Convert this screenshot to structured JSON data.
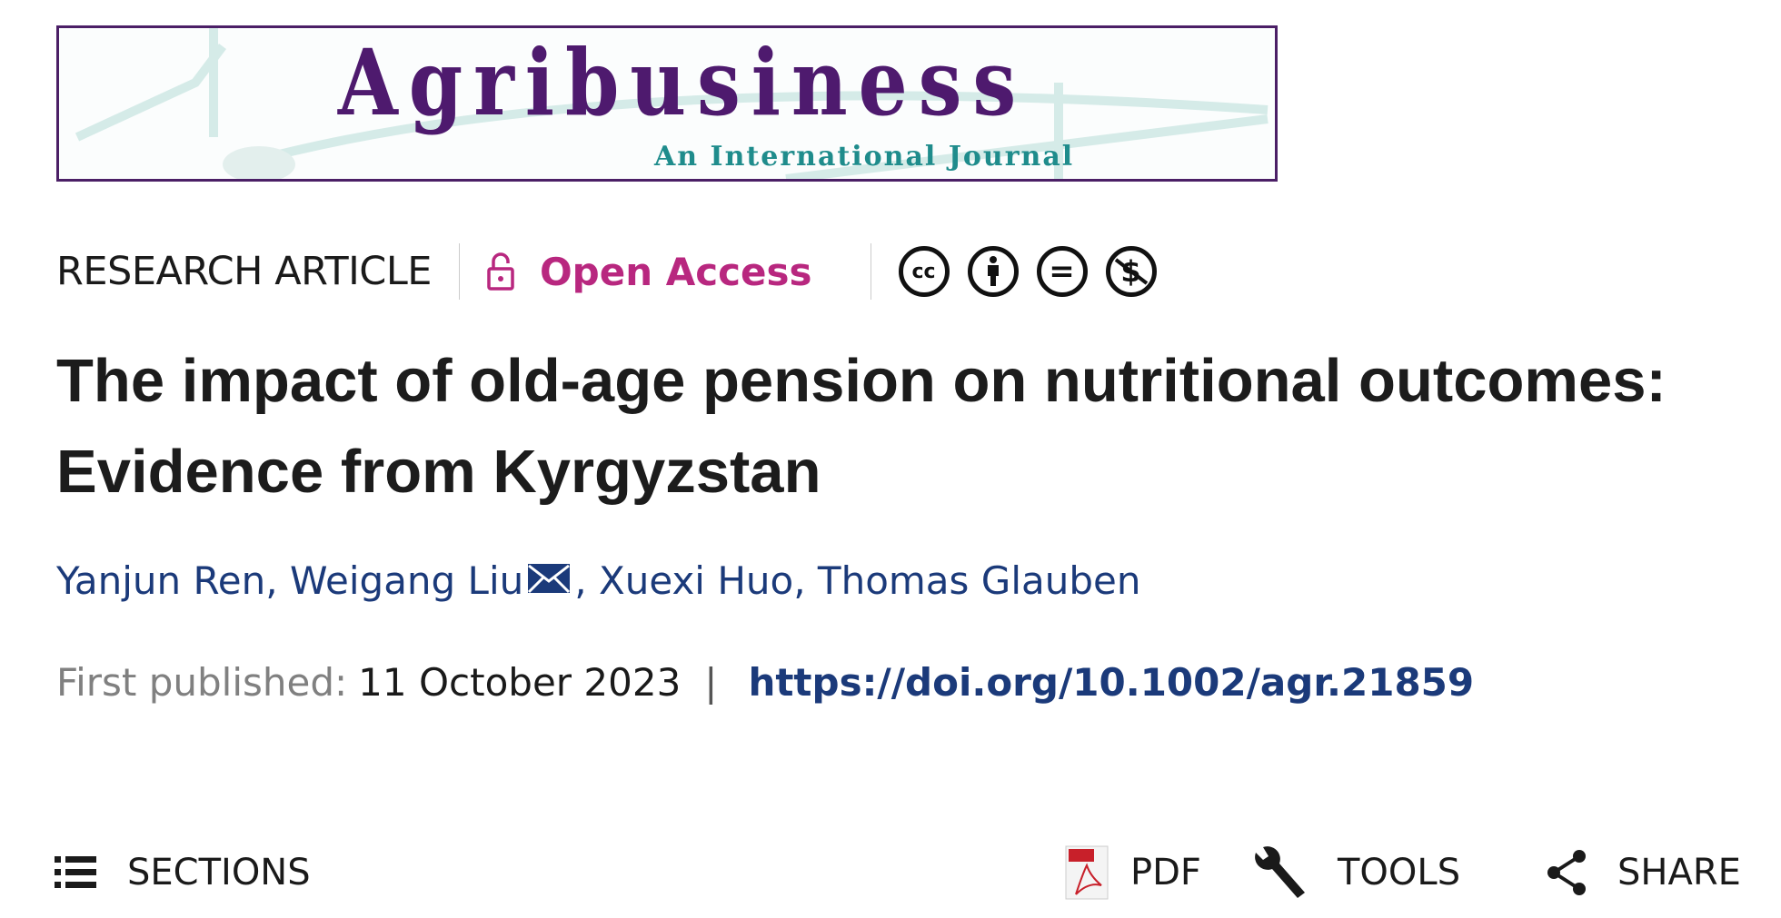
{
  "journal": {
    "title": "Agribusiness",
    "subtitle": "An International Journal"
  },
  "article_type": "RESEARCH ARTICLE",
  "access": {
    "label": "Open Access",
    "color": "#b8277f",
    "icon": "unlocked-padlock-icon"
  },
  "license_icons": [
    {
      "name": "cc-icon",
      "glyph": "cc"
    },
    {
      "name": "by-attribution-icon",
      "glyph": ""
    },
    {
      "name": "nd-no-derivatives-icon",
      "glyph": "="
    },
    {
      "name": "nc-non-commercial-icon",
      "glyph": "$"
    }
  ],
  "title": "The impact of old-age pension on nutritional outcomes: Evidence from Kyrgyzstan",
  "authors": {
    "a1": "Yanjun Ren",
    "a2": "Weigang Liu",
    "a3": "Xuexi Huo",
    "a4": "Thomas Glauben",
    "sep": ", "
  },
  "published": {
    "label": "First published:",
    "date": "11 October 2023",
    "separator": "|",
    "doi": "https://doi.org/10.1002/agr.21859"
  },
  "toolbar": {
    "sections": "SECTIONS",
    "pdf": "PDF",
    "tools": "TOOLS",
    "share": "SHARE"
  }
}
